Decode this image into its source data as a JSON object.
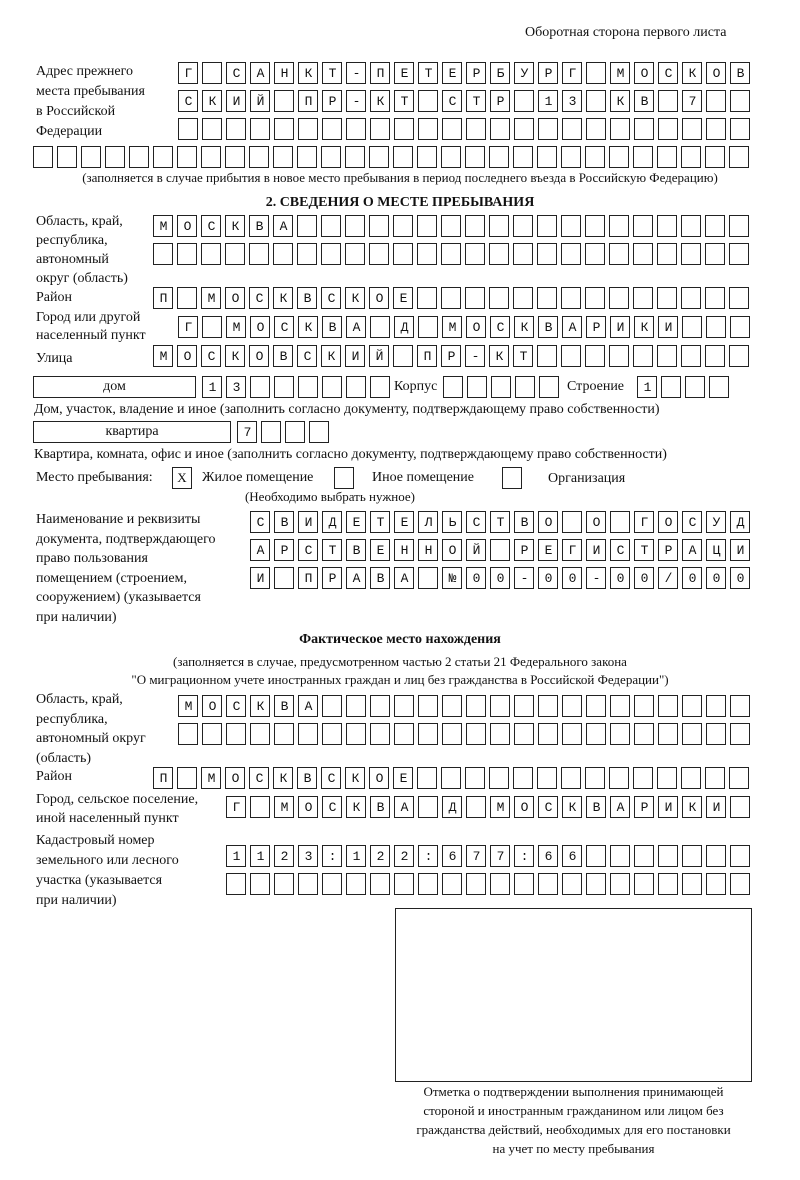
{
  "header": "Оборотная сторона первого листа",
  "prev_address": {
    "label": [
      "Адрес прежнего",
      "места пребывания",
      "в Российской",
      "Федерации"
    ],
    "rows": [
      "Г САНКТ-ПЕТЕРБУРГ МОСКОВ",
      "СКИЙ ПР-КТ СТР 13 КВ 7",
      "",
      ""
    ],
    "note": "(заполняется в случае прибытия в новое место пребывания в период последнего въезда в Российскую Федерацию)"
  },
  "section2": {
    "title": "2. СВЕДЕНИЯ О МЕСТЕ ПРЕБЫВАНИЯ",
    "region_label": [
      "Область, край,",
      "республика,",
      "автономный",
      "округ (область)"
    ],
    "region_rows": [
      "МОСКВА",
      ""
    ],
    "district_label": "Район",
    "district": "П МОСКВСКОЕ",
    "city_label": [
      "Город или другой",
      "населенный пункт"
    ],
    "city": "Г МОСКВА Д МОСКВАРИКИ",
    "street_label": "Улица",
    "street": "МОСКОВСКИЙ ПР-КТ",
    "house_type": "дом",
    "house": "13",
    "korpus_label": "Корпус",
    "korpus": "",
    "building_label": "Строение",
    "building": "1",
    "house_note": "Дом, участок, владение и иное (заполнить согласно документу, подтверждающему право собственности)",
    "flat_type": "квартира",
    "flat": "7",
    "flat_note": "Квартира, комната, офис и иное (заполнить согласно документу, подтверждающему право собственности)",
    "stay_label": "Место пребывания:",
    "stay_options": [
      {
        "label": "Жилое помещение",
        "mark": "X"
      },
      {
        "label": "Иное помещение",
        "mark": ""
      },
      {
        "label": "Организация",
        "mark": ""
      }
    ],
    "stay_note": "(Необходимо выбрать нужное)",
    "doc_label": [
      "Наименование и реквизиты",
      "документа, подтверждающего",
      "право пользования",
      "помещением (строением,",
      "сооружением) (указывается",
      "при наличии)"
    ],
    "doc_rows": [
      "СВИДЕТЕЛЬСТВО О ГОСУД",
      "АРСТВЕННОЙ РЕГИСТРАЦИ",
      "И ПРАВА №00-00-00/000"
    ]
  },
  "actual": {
    "title": "Фактическое место нахождения",
    "note": [
      "(заполняется в случае, предусмотренном частью 2 статьи 21 Федерального закона",
      "\"О миграционном учете иностранных граждан и лиц без гражданства в Российской Федерации\")"
    ],
    "region_label": [
      "Область, край,",
      "республика,",
      "автономный округ",
      "(область)"
    ],
    "region_rows": [
      "МОСКВА",
      ""
    ],
    "district_label": "Район",
    "district": "П МОСКВСКОЕ",
    "city_label": [
      "Город, сельское поселение,",
      "иной населенный пункт"
    ],
    "city": "Г МОСКВА Д МОСКВАРИКИ",
    "cadastre_label": [
      "Кадастровый номер",
      "земельного или лесного",
      "участка (указывается",
      "при наличии)"
    ],
    "cadastre_rows": [
      "1123:122:677:66",
      ""
    ]
  },
  "stamp_caption": [
    "Отметка о подтверждении выполнения принимающей",
    "стороной и иностранным гражданином или лицом без",
    "гражданства действий, необходимых для его постановки",
    "на учет по месту пребывания"
  ]
}
